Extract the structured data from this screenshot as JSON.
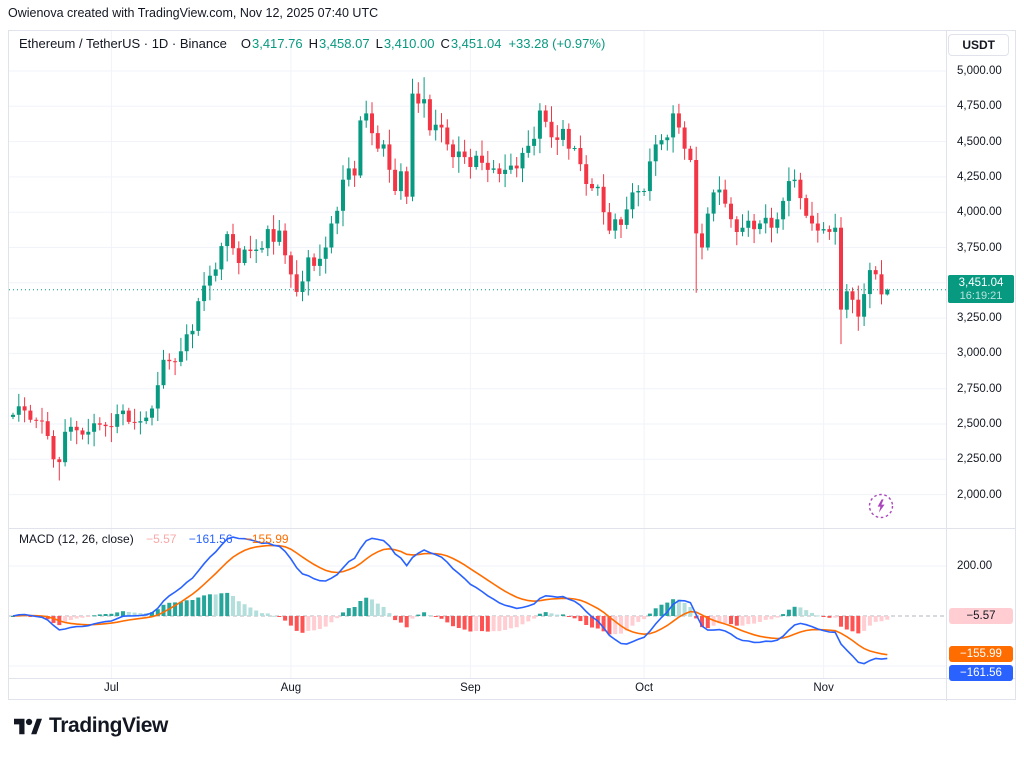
{
  "attribution": "Owienova created with TradingView.com, Nov 12, 2025 07:40 UTC",
  "header": {
    "title": "Ethereum / TetherUS · 1D · Binance",
    "ohlc": [
      {
        "label": "O",
        "value": "3,417.76"
      },
      {
        "label": "H",
        "value": "3,458.07"
      },
      {
        "label": "L",
        "value": "3,410.00"
      },
      {
        "label": "C",
        "value": "3,451.04"
      }
    ],
    "change": "+33.28 (+0.97%)",
    "currency_button": "USDT"
  },
  "price_scale": {
    "last_price_label": "3,451.04",
    "countdown": "16:19:21"
  },
  "indicator": {
    "title": "MACD",
    "params": "(12, 26, close)",
    "value_hist": "−5.57",
    "value_macd": "−161.56",
    "value_signal": "−155.99",
    "axis_tick": "200.00",
    "badge_hist": "−5.57",
    "badge_signal": "−155.99",
    "badge_macd": "−161.56"
  },
  "time_scale": {
    "labels": [
      "Jul",
      "Aug",
      "Sep",
      "Oct",
      "Nov"
    ]
  },
  "logo": {
    "text": "TradingView"
  },
  "colors": {
    "up": "#089981",
    "down": "#F23645",
    "accent_badge": "#089981",
    "macd_line": "#2962FF",
    "signal_line": "#FF6D00",
    "hist_up": "#26A69A",
    "hist_up_fade": "#B2DFDB",
    "hist_down": "#FF5252",
    "hist_down_fade": "#FFCDD2",
    "hist_value_text": "#F7A9A9",
    "badge_hist_bg": "#FFCDD2",
    "badge_signal_bg": "#FF6D00",
    "badge_macd_bg": "#2962FF",
    "bolt": "#AB47BC",
    "grid": "#f0f3fa",
    "zero_line": "#B2B5BE"
  },
  "chart_data": [
    {
      "type": "candlestick",
      "title": "Ethereum / TetherUS, 1D, Binance",
      "interval": "1D",
      "start_date": "2025-06-14",
      "end_date": "2025-11-12",
      "first_open": 2550,
      "closes": [
        2565,
        2625,
        2595,
        2530,
        2525,
        2520,
        2415,
        2250,
        2230,
        2445,
        2480,
        2455,
        2425,
        2445,
        2505,
        2495,
        2485,
        2480,
        2570,
        2595,
        2515,
        2510,
        2520,
        2545,
        2610,
        2775,
        2955,
        2945,
        2940,
        3015,
        3135,
        3160,
        3370,
        3480,
        3550,
        3595,
        3760,
        3845,
        3745,
        3640,
        3735,
        3725,
        3735,
        3745,
        3880,
        3790,
        3870,
        3695,
        3560,
        3435,
        3510,
        3680,
        3620,
        3670,
        3750,
        3920,
        4010,
        4230,
        4310,
        4260,
        4650,
        4700,
        4560,
        4450,
        4480,
        4300,
        4150,
        4290,
        4110,
        4840,
        4770,
        4800,
        4580,
        4620,
        4600,
        4480,
        4390,
        4430,
        4390,
        4320,
        4400,
        4350,
        4300,
        4310,
        4270,
        4300,
        4330,
        4310,
        4420,
        4470,
        4520,
        4720,
        4640,
        4530,
        4512,
        4590,
        4450,
        4455,
        4340,
        4200,
        4170,
        4180,
        4000,
        3870,
        3950,
        3910,
        4020,
        4140,
        4150,
        4150,
        4360,
        4480,
        4510,
        4530,
        4700,
        4600,
        4450,
        4370,
        3850,
        3750,
        3990,
        4140,
        4160,
        4060,
        3950,
        3860,
        3890,
        3940,
        3880,
        3920,
        3960,
        3890,
        3950,
        4080,
        4220,
        4230,
        4100,
        3975,
        3920,
        3870,
        3880,
        3860,
        3890,
        3310,
        3440,
        3380,
        3260,
        3420,
        3590,
        3560,
        3417.76,
        3451.04
      ],
      "wick_overrides": {
        "8": {
          "low": 2100
        },
        "37": {
          "high": 3865
        },
        "61": {
          "high": 4790
        },
        "68": {
          "low": 4058
        },
        "71": {
          "high": 4956
        },
        "91": {
          "high": 4772
        },
        "114": {
          "high": 4758
        },
        "118": {
          "low": 3430
        },
        "143": {
          "low": 3066
        },
        "146": {
          "low": 3160
        },
        "151": {
          "high": 3458.07,
          "low": 3410
        }
      },
      "last_candle": {
        "open": 3417.76,
        "high": 3458.07,
        "low": 3410.0,
        "close": 3451.04
      },
      "last_price": 3451.04,
      "y_ticks": [
        5000,
        4750,
        4500,
        4250,
        4000,
        3750,
        3500,
        3250,
        3000,
        2750,
        2500,
        2250,
        2000
      ],
      "y_tick_labels": [
        "5,000.00",
        "4,750.00",
        "4,500.00",
        "4,250.00",
        "4,000.00",
        "3,750.00",
        "3,500.00",
        "3,250.00",
        "3,000.00",
        "2,750.00",
        "2,500.00",
        "2,250.00",
        "2,000.00"
      ],
      "x_labels": [
        "Jul",
        "Aug",
        "Sep",
        "Oct",
        "Nov"
      ],
      "month_start_indices": [
        17,
        48,
        79,
        109,
        140
      ],
      "grid": true,
      "ylim_visible": [
        2000,
        5000
      ]
    },
    {
      "type": "macd",
      "params": {
        "fast": 12,
        "slow": 26,
        "signal": 9,
        "source": "close"
      },
      "displayed_values": {
        "histogram": -5.57,
        "macd": -161.56,
        "signal": -155.99
      },
      "y_tick": 200,
      "y_gridlines": [
        200,
        -200
      ],
      "zero_line_dashed": true,
      "series_note": "MACD(12,26,9) computed from the candlestick closes above"
    }
  ]
}
